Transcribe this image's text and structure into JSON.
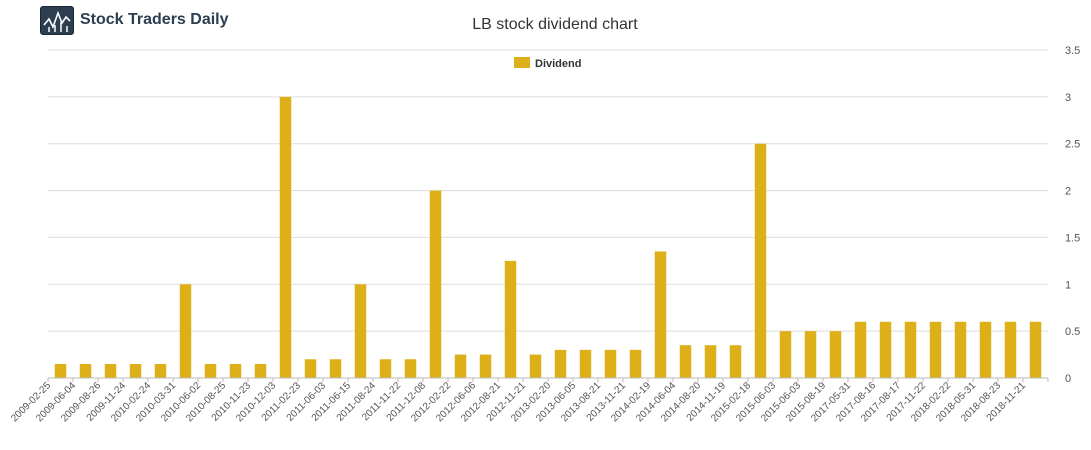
{
  "brand": {
    "name": "Stock Traders Daily"
  },
  "chart_data": {
    "type": "bar",
    "title": "LB stock dividend chart",
    "legend": "Dividend",
    "legend_position": "top-center",
    "series_color": "#ddb01a",
    "ylim": [
      0,
      3.5
    ],
    "y_ticks": [
      "0",
      "0.5",
      "1",
      "1.5",
      "2",
      "2.5",
      "3",
      "3.5"
    ],
    "y_tick_values": [
      0,
      0.5,
      1,
      1.5,
      2,
      2.5,
      3,
      3.5
    ],
    "grid": true,
    "xlabel": "",
    "ylabel": "",
    "categories": [
      "2009-02-25",
      "2009-06-04",
      "2009-08-26",
      "2009-11-24",
      "2010-02-24",
      "2010-03-31",
      "2010-06-02",
      "2010-08-25",
      "2010-11-23",
      "2010-12-03",
      "2011-02-23",
      "2011-06-03",
      "2011-06-15",
      "2011-08-24",
      "2011-11-22",
      "2011-12-08",
      "2012-02-22",
      "2012-06-06",
      "2012-08-21",
      "2012-11-21",
      "2013-02-20",
      "2013-06-05",
      "2013-08-21",
      "2013-11-21",
      "2014-02-19",
      "2014-06-04",
      "2014-08-20",
      "2014-11-19",
      "2015-02-18",
      "2015-06-03",
      "2015-06-03",
      "2015-08-19",
      "2017-05-31",
      "2017-08-16",
      "2017-08-17",
      "2017-11-22",
      "2018-02-22",
      "2018-05-31",
      "2018-08-23",
      "2018-11-21"
    ],
    "values": [
      0.15,
      0.15,
      0.15,
      0.15,
      0.15,
      1.0,
      0.15,
      0.15,
      0.15,
      3.0,
      0.2,
      0.2,
      1.0,
      0.2,
      0.2,
      2.0,
      0.25,
      0.25,
      1.25,
      0.25,
      0.3,
      0.3,
      0.3,
      0.3,
      1.35,
      0.35,
      0.35,
      0.35,
      2.5,
      0.5,
      0.5,
      0.5,
      0.6,
      0.6,
      0.6,
      0.6,
      0.6,
      0.6,
      0.6,
      0.6
    ]
  }
}
